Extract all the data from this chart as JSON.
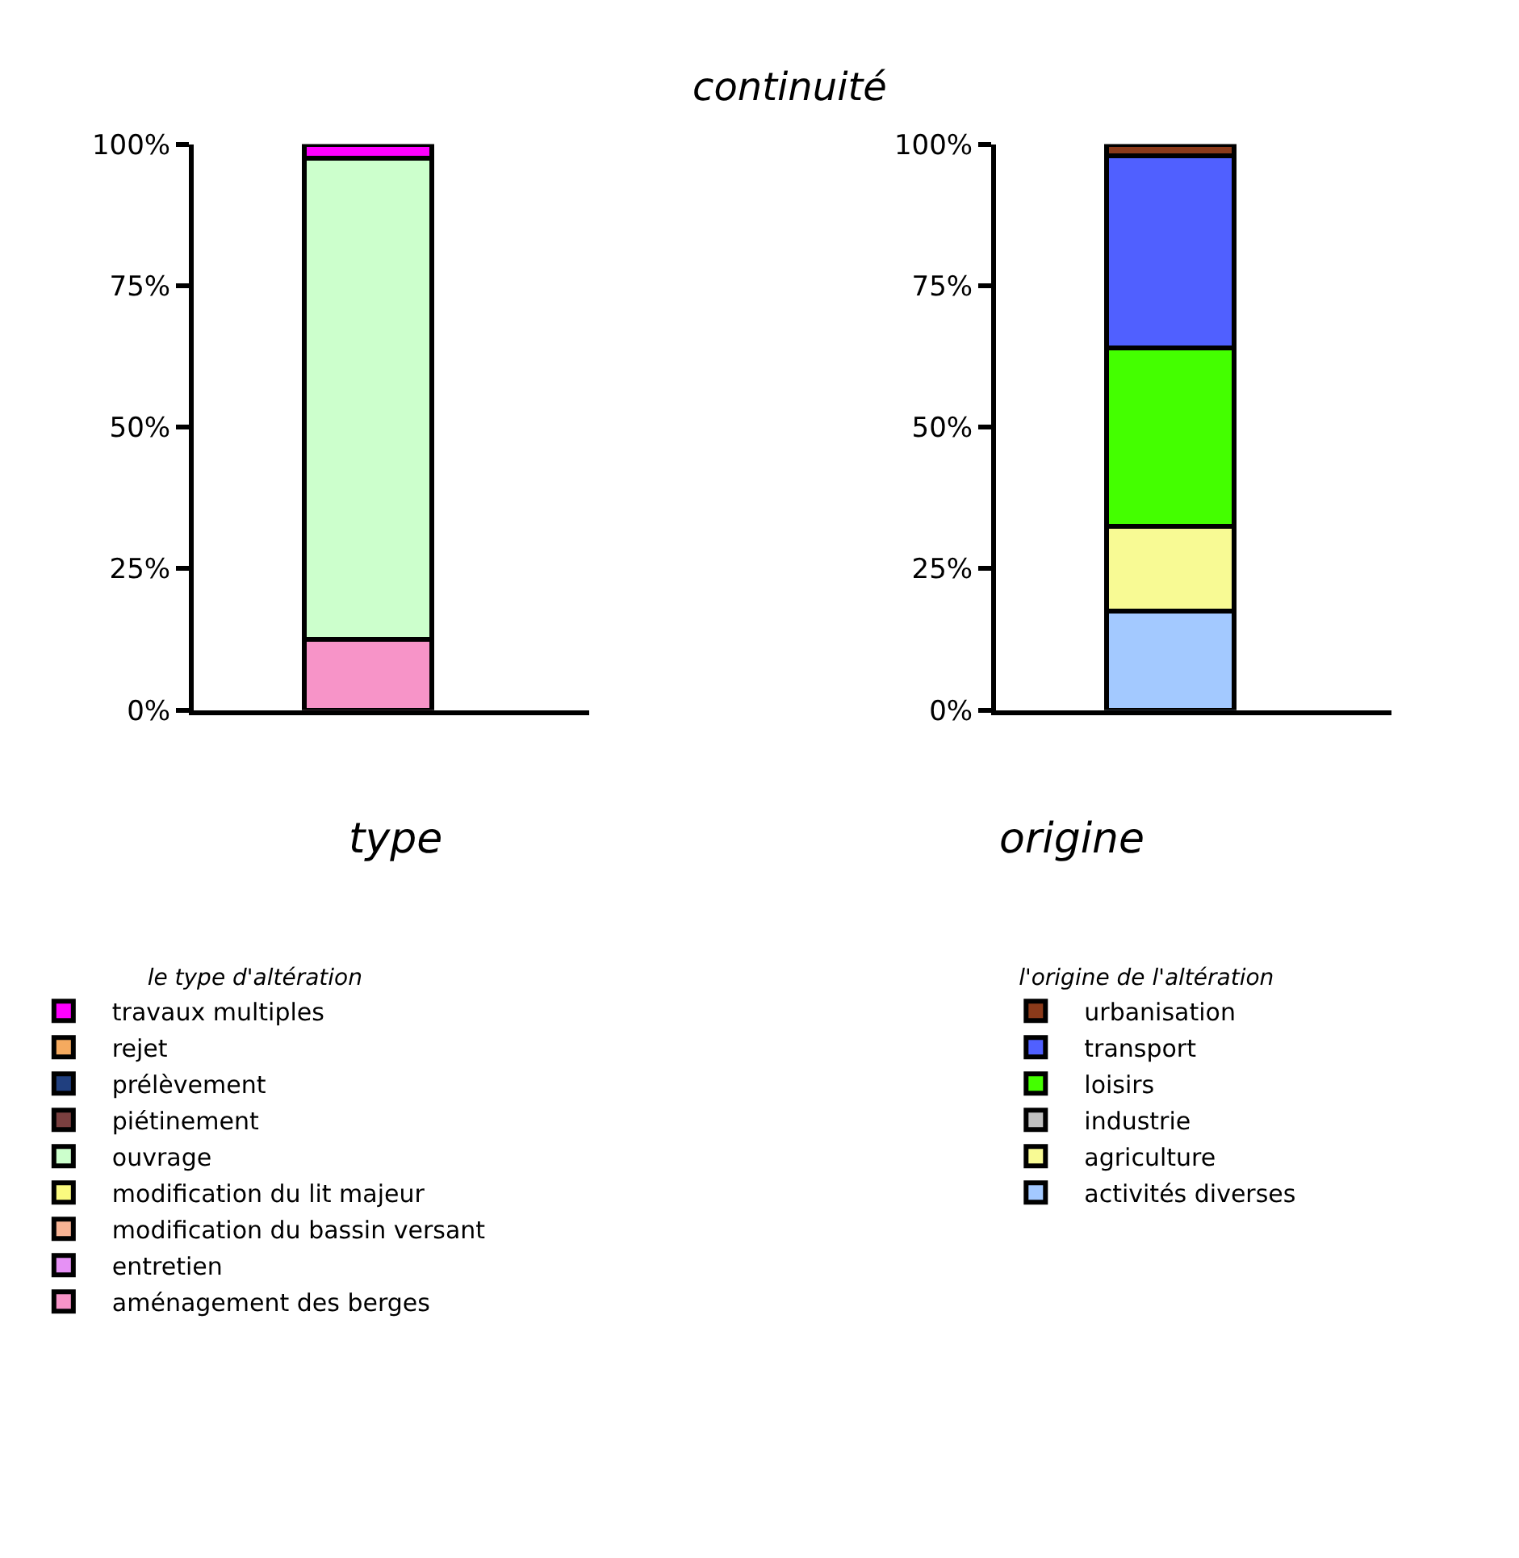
{
  "chart_data": [
    {
      "type": "bar",
      "annotations": [
        "continuité"
      ],
      "xlabel": "type",
      "legend_title": "le type d'altération",
      "stacked": true,
      "legend": "bottom",
      "tick_labels": "y",
      "categories": [
        null
      ],
      "ylim": [
        0,
        100
      ],
      "yticks": [
        {
          "value": 0,
          "label": "0%"
        },
        {
          "value": 25,
          "label": "25%"
        },
        {
          "value": 50,
          "label": "50%"
        },
        {
          "value": 75,
          "label": "75%"
        },
        {
          "value": 100,
          "label": "100%"
        }
      ],
      "series": [
        {
          "name": "aménagement des berges",
          "color": "#f794c8",
          "values": [
            12.5
          ]
        },
        {
          "name": "entretien",
          "color": "#e691f5",
          "values": [
            0
          ]
        },
        {
          "name": "modification du bassin versant",
          "color": "#f7b394",
          "values": [
            0
          ]
        },
        {
          "name": "modification du lit majeur",
          "color": "#fafa7f",
          "values": [
            0
          ]
        },
        {
          "name": "ouvrage",
          "color": "#ccffcc",
          "values": [
            85
          ]
        },
        {
          "name": "piétinement",
          "color": "#7a3f3f",
          "values": [
            0
          ]
        },
        {
          "name": "prélèvement",
          "color": "#203f7f",
          "values": [
            0
          ]
        },
        {
          "name": "rejet",
          "color": "#f5aa5f",
          "values": [
            0
          ]
        },
        {
          "name": "travaux multiples",
          "color": "#ff00ff",
          "values": [
            2.5
          ]
        }
      ]
    },
    {
      "type": "bar",
      "xlabel": "origine",
      "legend_title": "l'origine de l'altération",
      "stacked": true,
      "legend": "bottom",
      "tick_labels": "y",
      "categories": [
        null
      ],
      "ylim": [
        0,
        100
      ],
      "yticks": [
        {
          "value": 0,
          "label": "0%"
        },
        {
          "value": 25,
          "label": "25%"
        },
        {
          "value": 50,
          "label": "50%"
        },
        {
          "value": 75,
          "label": "75%"
        },
        {
          "value": 100,
          "label": "100%"
        }
      ],
      "series": [
        {
          "name": "activités diverses",
          "color": "#a3c9ff",
          "values": [
            17.5
          ]
        },
        {
          "name": "agriculture",
          "color": "#f8fa94",
          "values": [
            15
          ]
        },
        {
          "name": "industrie",
          "color": "#c0c0c0",
          "values": [
            0
          ]
        },
        {
          "name": "loisirs",
          "color": "#44ff00",
          "values": [
            31.5
          ]
        },
        {
          "name": "transport",
          "color": "#5060ff",
          "values": [
            34
          ]
        },
        {
          "name": "urbanisation",
          "color": "#8b3a1a",
          "values": [
            2
          ]
        }
      ]
    }
  ]
}
